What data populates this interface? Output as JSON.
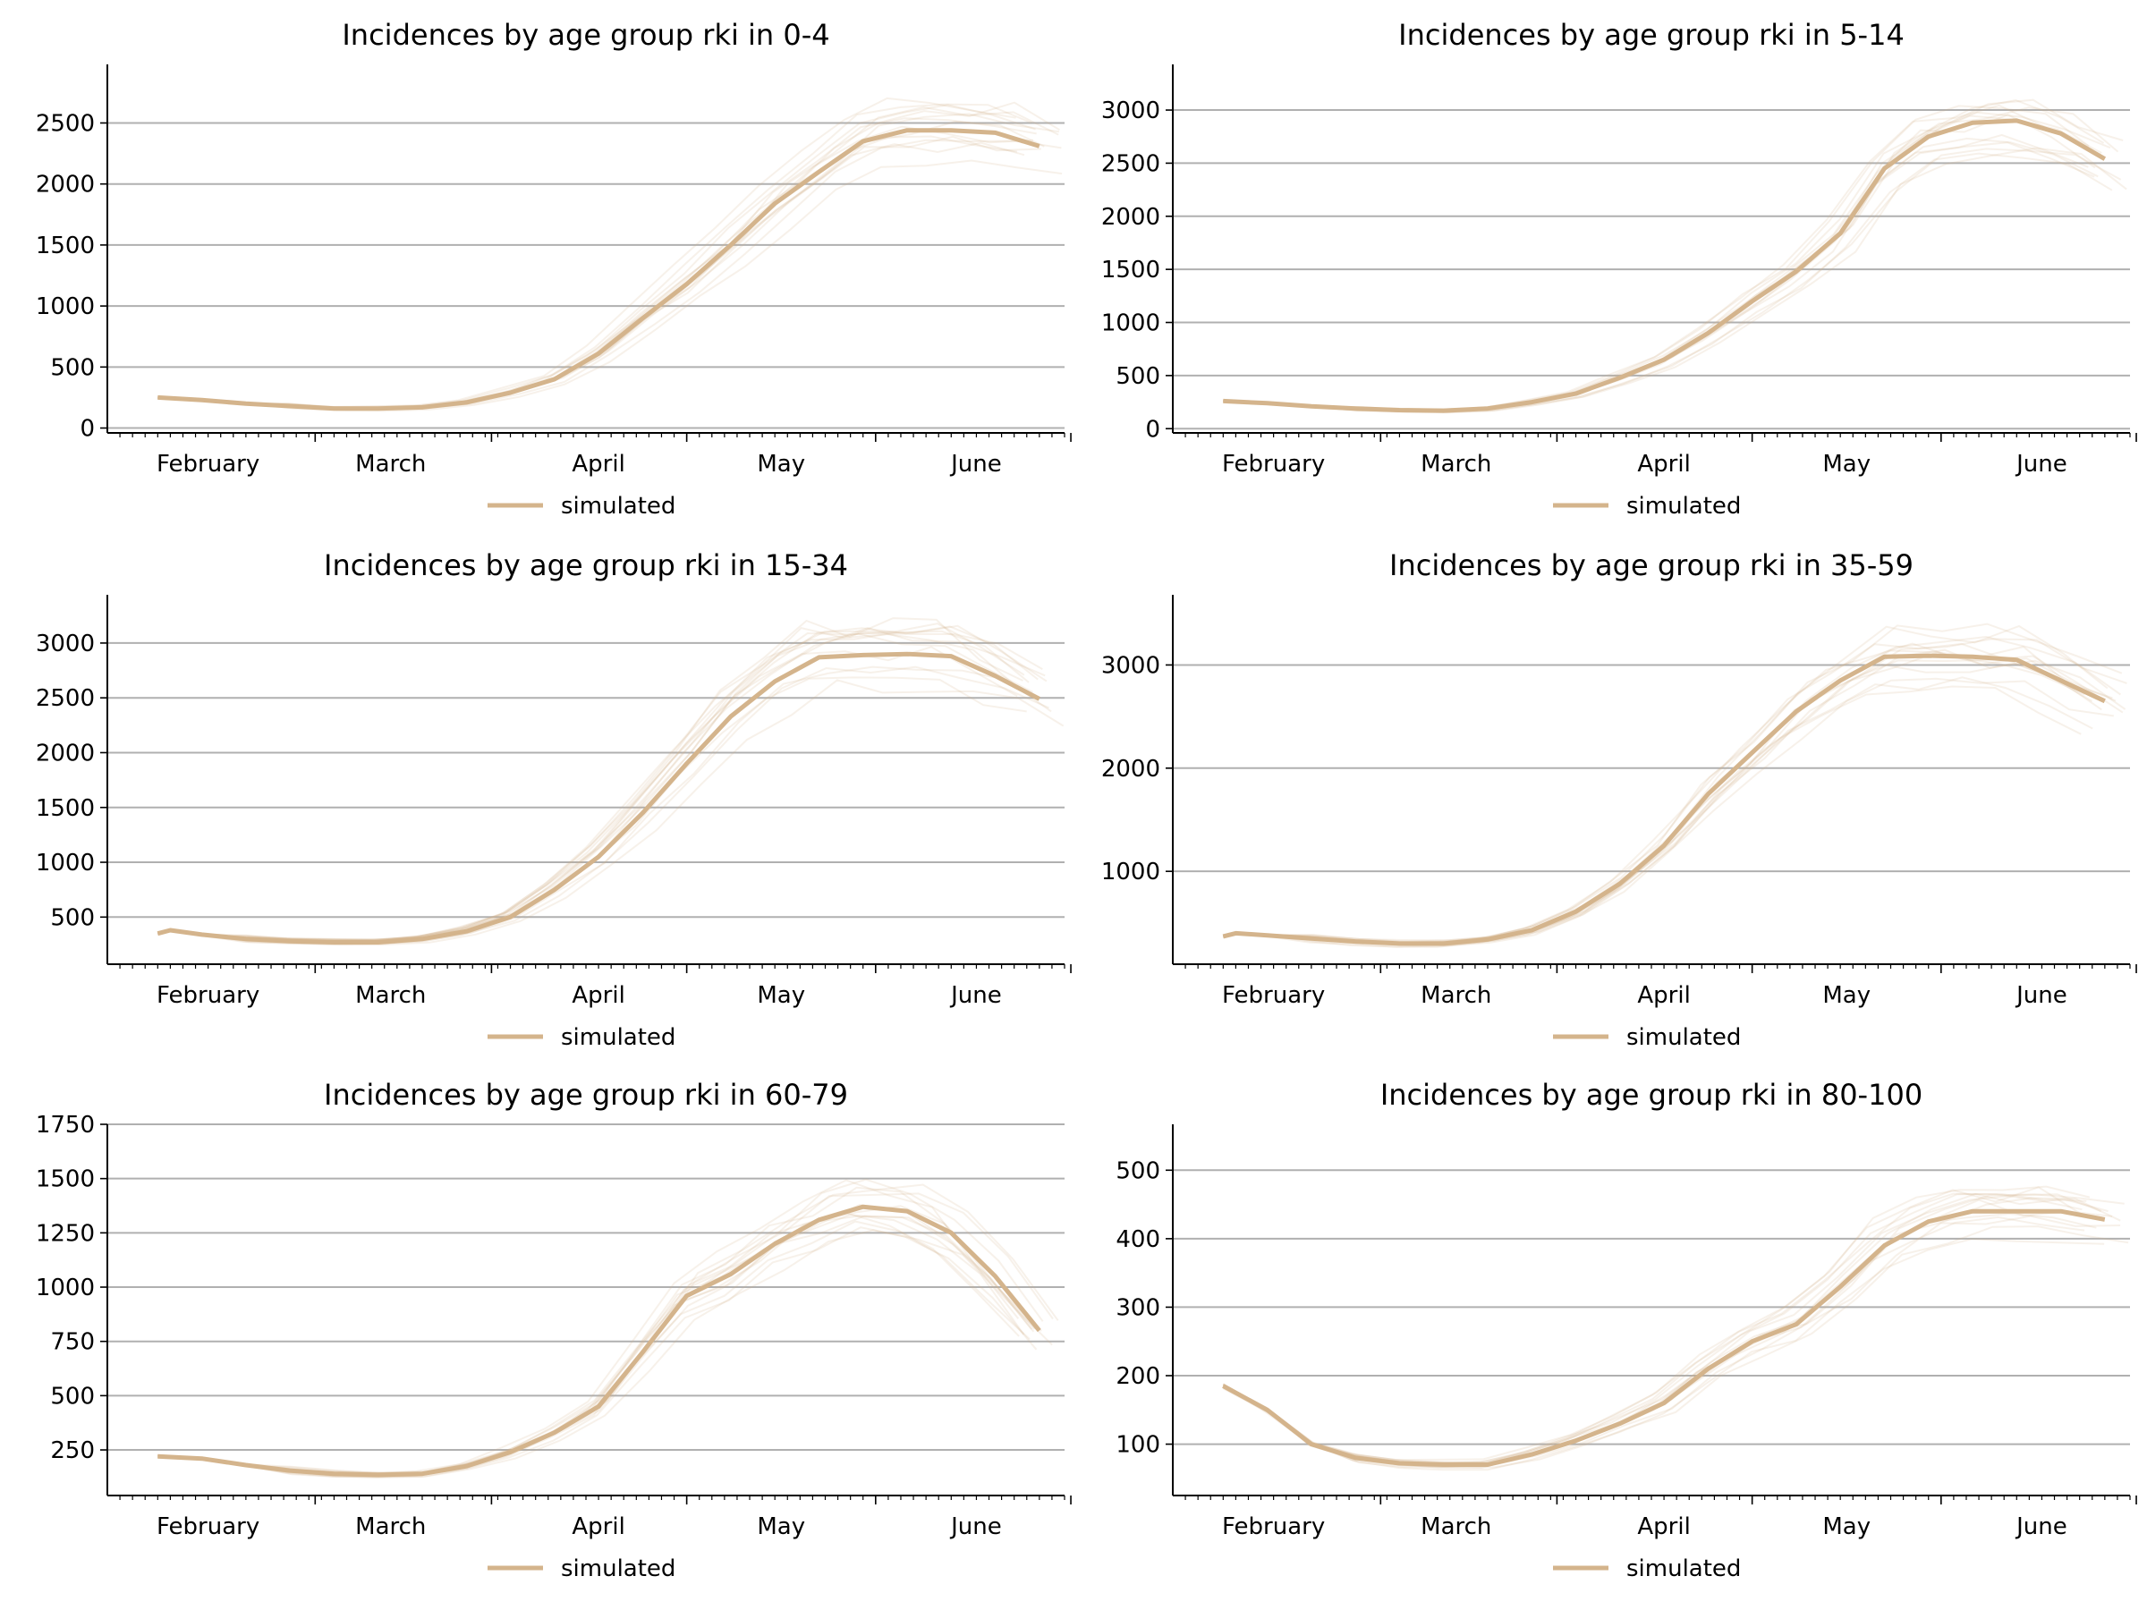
{
  "chart_data": [
    {
      "type": "line",
      "title": "Incidences by age group rki in 0-4",
      "x_tick_labels": [
        "February",
        "March",
        "April",
        "May",
        "June"
      ],
      "y_ticks": [
        0,
        500,
        1000,
        1500,
        2000,
        2500
      ],
      "ylim": [
        -40,
        2980
      ],
      "legend": "simulated",
      "grid": "horizontal",
      "series": [
        {
          "name": "simulated",
          "color": "#d4b48c",
          "x": [
            6,
            13,
            20,
            27,
            34,
            41,
            48,
            55,
            62,
            69,
            76,
            83,
            90,
            97,
            104,
            111,
            118,
            125,
            132,
            139,
            146
          ],
          "values": [
            250,
            230,
            200,
            180,
            160,
            160,
            170,
            210,
            290,
            400,
            610,
            900,
            1180,
            1500,
            1840,
            2100,
            2350,
            2440,
            2440,
            2420,
            2310
          ]
        }
      ]
    },
    {
      "type": "line",
      "title": "Incidences by age group rki in 5-14",
      "x_tick_labels": [
        "February",
        "March",
        "April",
        "May",
        "June"
      ],
      "y_ticks": [
        0,
        500,
        1000,
        1500,
        2000,
        2500,
        3000
      ],
      "ylim": [
        -40,
        3430
      ],
      "legend": "simulated",
      "grid": "horizontal",
      "series": [
        {
          "name": "simulated",
          "color": "#d4b48c",
          "x": [
            6,
            13,
            20,
            27,
            34,
            41,
            48,
            55,
            62,
            69,
            76,
            83,
            90,
            97,
            104,
            111,
            118,
            125,
            132,
            139,
            146
          ],
          "values": [
            260,
            240,
            210,
            190,
            175,
            170,
            190,
            250,
            330,
            480,
            650,
            900,
            1200,
            1480,
            1840,
            2450,
            2750,
            2880,
            2900,
            2780,
            2540
          ]
        }
      ]
    },
    {
      "type": "line",
      "title": "Incidences by age group rki in 15-34",
      "x_tick_labels": [
        "February",
        "March",
        "April",
        "May",
        "June"
      ],
      "y_ticks": [
        500,
        1000,
        1500,
        2000,
        2500,
        3000
      ],
      "ylim": [
        70,
        3440
      ],
      "legend": "simulated",
      "grid": "horizontal",
      "series": [
        {
          "name": "simulated",
          "color": "#d4b48c",
          "x": [
            6,
            8,
            13,
            20,
            27,
            34,
            41,
            48,
            55,
            62,
            69,
            76,
            83,
            90,
            97,
            104,
            111,
            118,
            125,
            132,
            139,
            146
          ],
          "values": [
            350,
            380,
            340,
            300,
            280,
            270,
            270,
            300,
            370,
            500,
            750,
            1050,
            1450,
            1900,
            2330,
            2650,
            2870,
            2890,
            2900,
            2880,
            2700,
            2490
          ]
        }
      ]
    },
    {
      "type": "line",
      "title": "Incidences by age group rki in 35-59",
      "x_tick_labels": [
        "February",
        "March",
        "April",
        "May",
        "June"
      ],
      "y_ticks": [
        1000,
        2000,
        3000
      ],
      "ylim": [
        100,
        3680
      ],
      "legend": "simulated",
      "grid": "horizontal",
      "series": [
        {
          "name": "simulated",
          "color": "#d4b48c",
          "x": [
            6,
            8,
            13,
            20,
            27,
            34,
            41,
            48,
            55,
            62,
            69,
            76,
            83,
            90,
            97,
            104,
            111,
            118,
            125,
            132,
            139,
            146
          ],
          "values": [
            370,
            400,
            380,
            350,
            320,
            300,
            300,
            340,
            430,
            610,
            880,
            1250,
            1750,
            2150,
            2550,
            2850,
            3080,
            3090,
            3080,
            3050,
            2850,
            2650
          ]
        }
      ]
    },
    {
      "type": "line",
      "title": "Incidences by age group rki in 60-79",
      "x_tick_labels": [
        "February",
        "March",
        "April",
        "May",
        "June"
      ],
      "y_ticks": [
        250,
        500,
        750,
        1000,
        1250,
        1500,
        1750
      ],
      "ylim": [
        40,
        1750
      ],
      "legend": "simulated",
      "grid": "horizontal",
      "series": [
        {
          "name": "simulated",
          "color": "#d4b48c",
          "x": [
            6,
            13,
            20,
            27,
            34,
            41,
            48,
            55,
            62,
            69,
            76,
            83,
            90,
            97,
            104,
            111,
            118,
            125,
            132,
            139,
            146
          ],
          "values": [
            220,
            210,
            180,
            155,
            140,
            135,
            140,
            175,
            240,
            330,
            450,
            700,
            960,
            1060,
            1200,
            1310,
            1370,
            1350,
            1250,
            1050,
            800
          ]
        }
      ]
    },
    {
      "type": "line",
      "title": "Incidences by age group rki in 80-100",
      "x_tick_labels": [
        "February",
        "March",
        "April",
        "May",
        "June"
      ],
      "y_ticks": [
        100,
        200,
        300,
        400,
        500
      ],
      "ylim": [
        25,
        567
      ],
      "legend": "simulated",
      "grid": "horizontal",
      "series": [
        {
          "name": "simulated",
          "color": "#d4b48c",
          "x": [
            6,
            13,
            20,
            27,
            34,
            41,
            48,
            55,
            62,
            69,
            76,
            83,
            90,
            97,
            104,
            111,
            118,
            125,
            132,
            139,
            146
          ],
          "values": [
            185,
            150,
            100,
            80,
            72,
            70,
            70,
            85,
            105,
            130,
            160,
            210,
            250,
            275,
            330,
            390,
            425,
            440,
            440,
            440,
            428
          ]
        }
      ]
    }
  ]
}
